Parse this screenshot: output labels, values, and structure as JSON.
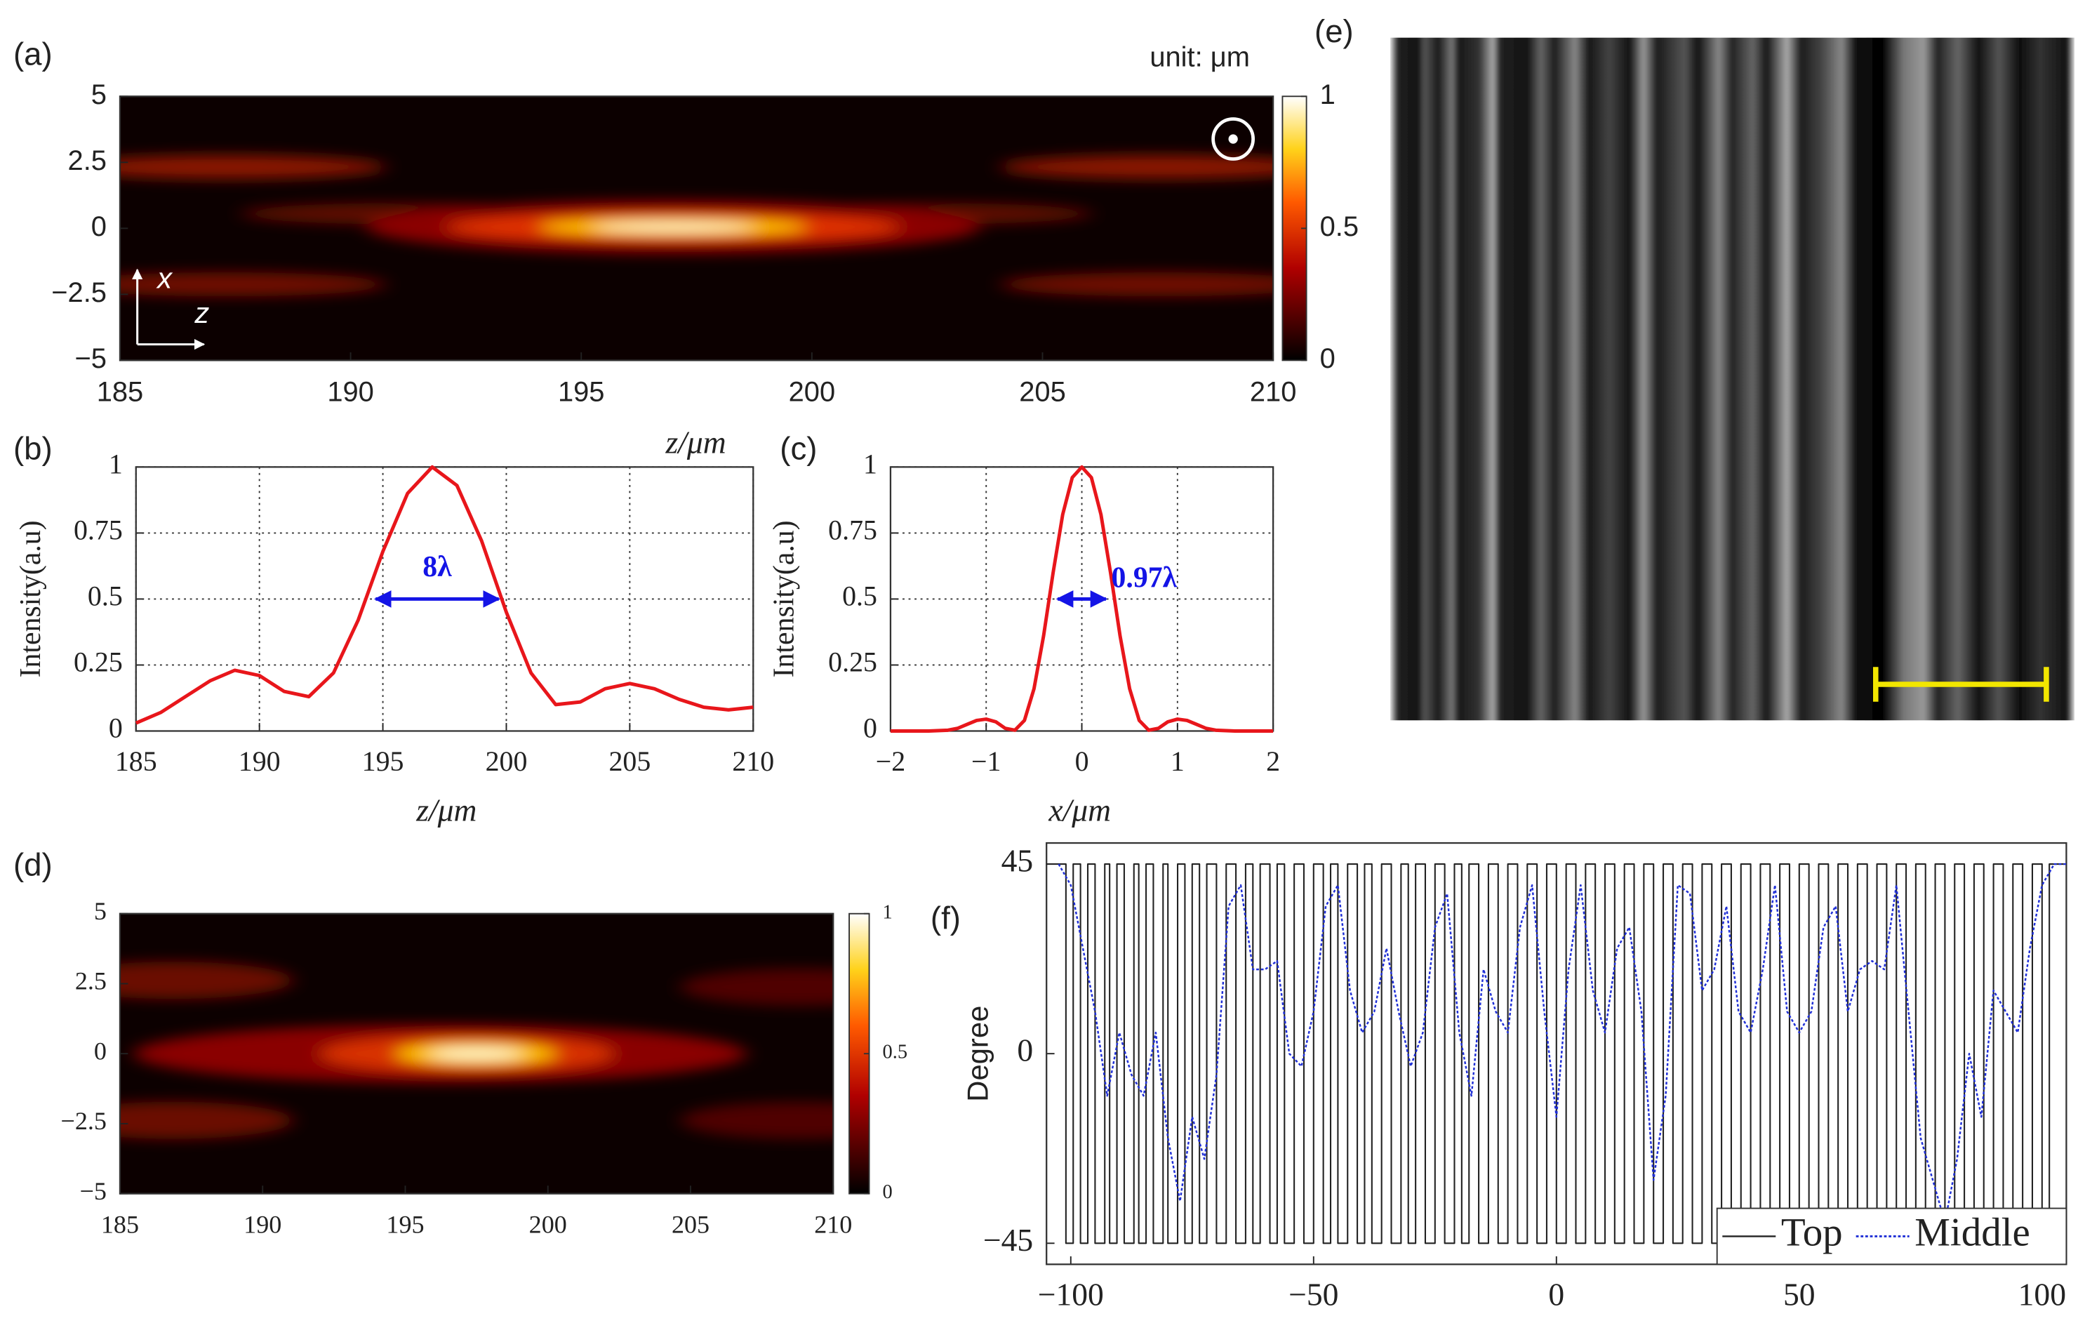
{
  "chart_data": [
    {
      "type": "heatmap",
      "label": "(a)",
      "unit_label": "unit: μm",
      "x_label": "z/μm",
      "axis_indicator": [
        "x",
        "z"
      ],
      "xlim": [
        185,
        210
      ],
      "xticks": [
        185,
        190,
        195,
        200,
        205,
        210
      ],
      "ylim": [
        -5,
        5
      ],
      "yticks": [
        {
          "value": -5,
          "label": "−5"
        },
        {
          "value": -2.5,
          "label": "−2.5"
        },
        0,
        2.5,
        5
      ],
      "colorbar_lim": [
        0,
        1
      ],
      "colorbar_ticks": [
        0,
        0.5,
        1
      ]
    },
    {
      "type": "line",
      "label": "(b)",
      "x_label": "z/μm",
      "y_label": "Intensity(a.u)",
      "grid": true,
      "xlim": [
        185,
        210
      ],
      "xticks": [
        185,
        190,
        195,
        200,
        205,
        210
      ],
      "ylim": [
        0,
        1
      ],
      "yticks": [
        0,
        0.25,
        0.5,
        0.75,
        1
      ],
      "series": [
        {
          "color": "#e8161b",
          "x": [
            185,
            186,
            187,
            188,
            189,
            190,
            191,
            192,
            193,
            194,
            195,
            196,
            197,
            198,
            199,
            200,
            201,
            202,
            203,
            204,
            205,
            206,
            207,
            208,
            209,
            210
          ],
          "values": [
            0.03,
            0.07,
            0.13,
            0.19,
            0.23,
            0.21,
            0.15,
            0.13,
            0.22,
            0.42,
            0.68,
            0.9,
            1.0,
            0.93,
            0.72,
            0.45,
            0.22,
            0.1,
            0.11,
            0.16,
            0.18,
            0.16,
            0.12,
            0.09,
            0.08,
            0.09
          ]
        }
      ],
      "annotation": {
        "text": "8λ",
        "x": [
          194.6,
          199.8
        ],
        "y": 0.5,
        "color": "#1414e6"
      }
    },
    {
      "type": "line",
      "label": "(c)",
      "x_label": "x/μm",
      "y_label": "Intensity(a.u)",
      "grid": true,
      "xlim": [
        -2,
        2
      ],
      "xticks": [
        {
          "value": -2,
          "label": "−2"
        },
        {
          "value": -1,
          "label": "−1"
        },
        0,
        1,
        2
      ],
      "ylim": [
        0,
        1
      ],
      "yticks": [
        0,
        0.25,
        0.5,
        0.75,
        1
      ],
      "series": [
        {
          "color": "#e8161b",
          "x": [
            -2,
            -1.8,
            -1.6,
            -1.4,
            -1.3,
            -1.2,
            -1.1,
            -1,
            -0.9,
            -0.8,
            -0.7,
            -0.6,
            -0.5,
            -0.4,
            -0.3,
            -0.2,
            -0.1,
            0,
            0.1,
            0.2,
            0.3,
            0.4,
            0.5,
            0.6,
            0.7,
            0.8,
            0.9,
            1,
            1.1,
            1.2,
            1.3,
            1.4,
            1.6,
            1.8,
            2
          ],
          "values": [
            0,
            0,
            0,
            0.003,
            0.01,
            0.025,
            0.04,
            0.045,
            0.035,
            0.01,
            0.003,
            0.04,
            0.16,
            0.36,
            0.6,
            0.82,
            0.96,
            1,
            0.96,
            0.82,
            0.6,
            0.36,
            0.16,
            0.04,
            0.003,
            0.01,
            0.035,
            0.045,
            0.04,
            0.025,
            0.01,
            0.003,
            0,
            0,
            0
          ]
        }
      ],
      "annotation": {
        "text": "0.97λ",
        "x": [
          -0.28,
          0.28
        ],
        "y": 0.5,
        "color": "#1414e6"
      }
    },
    {
      "type": "heatmap",
      "label": "(d)",
      "xlim": [
        185,
        210
      ],
      "xticks": [
        185,
        190,
        195,
        200,
        205,
        210
      ],
      "ylim": [
        -5,
        5
      ],
      "yticks": [
        {
          "value": -5,
          "label": "−5"
        },
        {
          "value": -2.5,
          "label": "−2.5"
        },
        0,
        2.5,
        5
      ],
      "colorbar_lim": [
        0,
        1
      ],
      "colorbar_ticks": [
        0,
        0.5,
        1
      ]
    },
    {
      "type": "image",
      "label": "(e)"
    },
    {
      "type": "line",
      "label": "(f)",
      "y_label": "Degree",
      "legend": "lower right",
      "xlim": [
        -105,
        105
      ],
      "xticks": [
        {
          "value": -100,
          "label": "−100"
        },
        {
          "value": -50,
          "label": "−50"
        },
        0,
        50,
        100
      ],
      "ylim": [
        -50,
        50
      ],
      "yticks": [
        {
          "value": -45,
          "label": "−45"
        },
        0,
        45
      ],
      "series": [
        {
          "name": "Top",
          "color": "#222222",
          "drawstyle": "steps-post",
          "x": [
            -105,
            -101,
            -99.5,
            -98,
            -96.5,
            -95,
            -93,
            -92,
            -90.5,
            -89,
            -87,
            -86,
            -84.5,
            -83,
            -81,
            -80,
            -78,
            -76.5,
            -75,
            -73.5,
            -72,
            -70,
            -68,
            -66,
            -64,
            -62.5,
            -61,
            -59,
            -57.5,
            -56,
            -54,
            -52,
            -50,
            -48,
            -46.5,
            -45,
            -43,
            -41,
            -39.5,
            -38,
            -36,
            -34,
            -32,
            -30.5,
            -29,
            -27,
            -25,
            -23,
            -21,
            -19.5,
            -18,
            -16,
            -14,
            -12,
            -10,
            -8,
            -6,
            -4,
            -2,
            0,
            2,
            4,
            6,
            8,
            10,
            12,
            14,
            16,
            18,
            20,
            22,
            24,
            26,
            28,
            30,
            32,
            34,
            36,
            38,
            40,
            42,
            44,
            46,
            48,
            50,
            52,
            54,
            56,
            58,
            60,
            62,
            64,
            66,
            68,
            70,
            72,
            74,
            76,
            78,
            80,
            82,
            84,
            86,
            88,
            90,
            92,
            94,
            96,
            98,
            100,
            101.5,
            105
          ],
          "values": [
            45,
            -45,
            45,
            -45,
            45,
            -45,
            45,
            -45,
            45,
            -45,
            45,
            -45,
            45,
            -45,
            45,
            -45,
            45,
            -45,
            45,
            -45,
            45,
            -45,
            45,
            -45,
            45,
            -45,
            45,
            -45,
            45,
            -45,
            45,
            -45,
            45,
            -45,
            45,
            -45,
            45,
            -45,
            45,
            -45,
            45,
            -45,
            45,
            -45,
            45,
            -45,
            45,
            -45,
            45,
            -45,
            45,
            -45,
            45,
            -45,
            45,
            -45,
            45,
            -45,
            45,
            -45,
            45,
            -45,
            45,
            -45,
            45,
            -45,
            45,
            -45,
            45,
            -45,
            45,
            -45,
            45,
            -45,
            45,
            -45,
            45,
            -45,
            45,
            -45,
            45,
            -45,
            45,
            -45,
            45,
            -45,
            45,
            -45,
            45,
            -45,
            45,
            -45,
            45,
            -45,
            45,
            -45,
            45,
            -45,
            45,
            -45,
            45,
            -45,
            45,
            -45,
            45,
            -45,
            45,
            -45,
            45,
            -45,
            45,
            45
          ]
        },
        {
          "name": "Middle",
          "color": "#1f2fd6",
          "dash": "dotted",
          "x": [
            -102.5,
            -100,
            -97.5,
            -95,
            -92.5,
            -90,
            -87.5,
            -85,
            -82.5,
            -80,
            -77.5,
            -75,
            -72.5,
            -70,
            -67.5,
            -65,
            -62.5,
            -60,
            -57.5,
            -55,
            -52.5,
            -50,
            -47.5,
            -45,
            -42.5,
            -40,
            -37.5,
            -35,
            -32.5,
            -30,
            -27.5,
            -25,
            -22.5,
            -20,
            -17.5,
            -15,
            -12.5,
            -10,
            -7.5,
            -5,
            -2.5,
            0,
            2.5,
            5,
            7.5,
            10,
            12.5,
            15,
            17.5,
            20,
            22.5,
            25,
            27.5,
            30,
            32.5,
            35,
            37.5,
            40,
            42.5,
            45,
            47.5,
            50,
            52.5,
            55,
            57.5,
            60,
            62.5,
            65,
            67.5,
            70,
            72.5,
            75,
            77.5,
            80,
            82.5,
            85,
            87.5,
            90,
            92.5,
            95,
            97.5,
            100,
            102.5,
            105
          ],
          "values": [
            45,
            40,
            25,
            10,
            -10,
            5,
            -5,
            -10,
            5,
            -20,
            -35,
            -15,
            -25,
            -5,
            35,
            40,
            20,
            20,
            22,
            0,
            -3,
            10,
            35,
            40,
            15,
            5,
            10,
            25,
            10,
            -3,
            5,
            30,
            38,
            5,
            -10,
            20,
            10,
            5,
            30,
            40,
            10,
            -15,
            20,
            40,
            15,
            5,
            25,
            30,
            10,
            -30,
            -10,
            40,
            38,
            15,
            20,
            35,
            10,
            5,
            20,
            40,
            10,
            5,
            10,
            30,
            35,
            10,
            20,
            22,
            20,
            40,
            10,
            -20,
            -30,
            -40,
            -25,
            0,
            -15,
            15,
            10,
            5,
            25,
            40,
            45,
            45
          ]
        }
      ]
    }
  ]
}
